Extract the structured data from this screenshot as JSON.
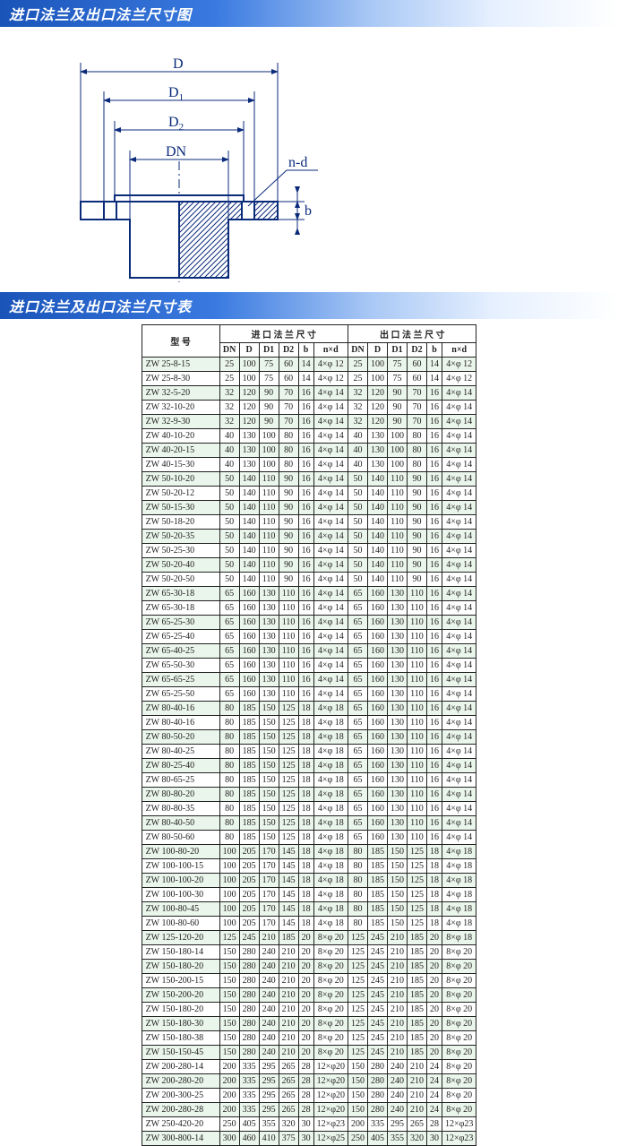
{
  "titles": {
    "diagram": "进口法兰及出口法兰尺寸图",
    "table": "进口法兰及出口法兰尺寸表"
  },
  "diagram": {
    "labels": {
      "D": "D",
      "D1": "D",
      "D1sub": "1",
      "D2": "D",
      "D2sub": "2",
      "DN": "DN",
      "nd": "n-d",
      "b": "b"
    },
    "stroke": "#0a2a7a",
    "hatch": "#0a2a7a"
  },
  "table": {
    "header": {
      "model": "型  号",
      "inlet": "进 口 法 兰 尺 寸",
      "outlet": "出 口 法 兰 尺 寸",
      "cols": [
        "DN",
        "D",
        "D1",
        "D2",
        "b",
        "n×d"
      ]
    },
    "rows": [
      {
        "m": "ZW 25-8-15",
        "in": [
          "25",
          "100",
          "75",
          "60",
          "14",
          "4×φ 12"
        ],
        "out": [
          "25",
          "100",
          "75",
          "60",
          "14",
          "4×φ 12"
        ]
      },
      {
        "m": "ZW 25-8-30",
        "in": [
          "25",
          "100",
          "75",
          "60",
          "14",
          "4×φ 12"
        ],
        "out": [
          "25",
          "100",
          "75",
          "60",
          "14",
          "4×φ 12"
        ]
      },
      {
        "m": "ZW 32-5-20",
        "in": [
          "32",
          "120",
          "90",
          "70",
          "16",
          "4×φ 14"
        ],
        "out": [
          "32",
          "120",
          "90",
          "70",
          "16",
          "4×φ 14"
        ]
      },
      {
        "m": "ZW 32-10-20",
        "in": [
          "32",
          "120",
          "90",
          "70",
          "16",
          "4×φ 14"
        ],
        "out": [
          "32",
          "120",
          "90",
          "70",
          "16",
          "4×φ 14"
        ]
      },
      {
        "m": "ZW 32-9-30",
        "in": [
          "32",
          "120",
          "90",
          "70",
          "16",
          "4×φ 14"
        ],
        "out": [
          "32",
          "120",
          "90",
          "70",
          "16",
          "4×φ 14"
        ]
      },
      {
        "m": "ZW 40-10-20",
        "in": [
          "40",
          "130",
          "100",
          "80",
          "16",
          "4×φ 14"
        ],
        "out": [
          "40",
          "130",
          "100",
          "80",
          "16",
          "4×φ 14"
        ]
      },
      {
        "m": "ZW 40-20-15",
        "in": [
          "40",
          "130",
          "100",
          "80",
          "16",
          "4×φ 14"
        ],
        "out": [
          "40",
          "130",
          "100",
          "80",
          "16",
          "4×φ 14"
        ]
      },
      {
        "m": "ZW 40-15-30",
        "in": [
          "40",
          "130",
          "100",
          "80",
          "16",
          "4×φ 14"
        ],
        "out": [
          "40",
          "130",
          "100",
          "80",
          "16",
          "4×φ 14"
        ]
      },
      {
        "m": "ZW 50-10-20",
        "in": [
          "50",
          "140",
          "110",
          "90",
          "16",
          "4×φ 14"
        ],
        "out": [
          "50",
          "140",
          "110",
          "90",
          "16",
          "4×φ 14"
        ]
      },
      {
        "m": "ZW 50-20-12",
        "in": [
          "50",
          "140",
          "110",
          "90",
          "16",
          "4×φ 14"
        ],
        "out": [
          "50",
          "140",
          "110",
          "90",
          "16",
          "4×φ 14"
        ]
      },
      {
        "m": "ZW 50-15-30",
        "in": [
          "50",
          "140",
          "110",
          "90",
          "16",
          "4×φ 14"
        ],
        "out": [
          "50",
          "140",
          "110",
          "90",
          "16",
          "4×φ 14"
        ]
      },
      {
        "m": "ZW 50-18-20",
        "in": [
          "50",
          "140",
          "110",
          "90",
          "16",
          "4×φ 14"
        ],
        "out": [
          "50",
          "140",
          "110",
          "90",
          "16",
          "4×φ 14"
        ]
      },
      {
        "m": "ZW 50-20-35",
        "in": [
          "50",
          "140",
          "110",
          "90",
          "16",
          "4×φ 14"
        ],
        "out": [
          "50",
          "140",
          "110",
          "90",
          "16",
          "4×φ 14"
        ]
      },
      {
        "m": "ZW 50-25-30",
        "in": [
          "50",
          "140",
          "110",
          "90",
          "16",
          "4×φ 14"
        ],
        "out": [
          "50",
          "140",
          "110",
          "90",
          "16",
          "4×φ 14"
        ]
      },
      {
        "m": "ZW 50-20-40",
        "in": [
          "50",
          "140",
          "110",
          "90",
          "16",
          "4×φ 14"
        ],
        "out": [
          "50",
          "140",
          "110",
          "90",
          "16",
          "4×φ 14"
        ]
      },
      {
        "m": "ZW 50-20-50",
        "in": [
          "50",
          "140",
          "110",
          "90",
          "16",
          "4×φ 14"
        ],
        "out": [
          "50",
          "140",
          "110",
          "90",
          "16",
          "4×φ 14"
        ]
      },
      {
        "m": "ZW 65-30-18",
        "in": [
          "65",
          "160",
          "130",
          "110",
          "16",
          "4×φ 14"
        ],
        "out": [
          "65",
          "160",
          "130",
          "110",
          "16",
          "4×φ 14"
        ]
      },
      {
        "m": "ZW 65-30-18",
        "in": [
          "65",
          "160",
          "130",
          "110",
          "16",
          "4×φ 14"
        ],
        "out": [
          "65",
          "160",
          "130",
          "110",
          "16",
          "4×φ 14"
        ]
      },
      {
        "m": "ZW 65-25-30",
        "in": [
          "65",
          "160",
          "130",
          "110",
          "16",
          "4×φ 14"
        ],
        "out": [
          "65",
          "160",
          "130",
          "110",
          "16",
          "4×φ 14"
        ]
      },
      {
        "m": "ZW 65-25-40",
        "in": [
          "65",
          "160",
          "130",
          "110",
          "16",
          "4×φ 14"
        ],
        "out": [
          "65",
          "160",
          "130",
          "110",
          "16",
          "4×φ 14"
        ]
      },
      {
        "m": "ZW 65-40-25",
        "in": [
          "65",
          "160",
          "130",
          "110",
          "16",
          "4×φ 14"
        ],
        "out": [
          "65",
          "160",
          "130",
          "110",
          "16",
          "4×φ 14"
        ]
      },
      {
        "m": "ZW 65-50-30",
        "in": [
          "65",
          "160",
          "130",
          "110",
          "16",
          "4×φ 14"
        ],
        "out": [
          "65",
          "160",
          "130",
          "110",
          "16",
          "4×φ 14"
        ]
      },
      {
        "m": "ZW 65-65-25",
        "in": [
          "65",
          "160",
          "130",
          "110",
          "16",
          "4×φ 14"
        ],
        "out": [
          "65",
          "160",
          "130",
          "110",
          "16",
          "4×φ 14"
        ]
      },
      {
        "m": "ZW 65-25-50",
        "in": [
          "65",
          "160",
          "130",
          "110",
          "16",
          "4×φ 14"
        ],
        "out": [
          "65",
          "160",
          "130",
          "110",
          "16",
          "4×φ 14"
        ]
      },
      {
        "m": "ZW 80-40-16",
        "in": [
          "80",
          "185",
          "150",
          "125",
          "18",
          "4×φ 18"
        ],
        "out": [
          "65",
          "160",
          "130",
          "110",
          "16",
          "4×φ 14"
        ]
      },
      {
        "m": "ZW 80-40-16",
        "in": [
          "80",
          "185",
          "150",
          "125",
          "18",
          "4×φ 18"
        ],
        "out": [
          "65",
          "160",
          "130",
          "110",
          "16",
          "4×φ 14"
        ]
      },
      {
        "m": "ZW 80-50-20",
        "in": [
          "80",
          "185",
          "150",
          "125",
          "18",
          "4×φ 18"
        ],
        "out": [
          "65",
          "160",
          "130",
          "110",
          "16",
          "4×φ 14"
        ]
      },
      {
        "m": "ZW 80-40-25",
        "in": [
          "80",
          "185",
          "150",
          "125",
          "18",
          "4×φ 18"
        ],
        "out": [
          "65",
          "160",
          "130",
          "110",
          "16",
          "4×φ 14"
        ]
      },
      {
        "m": "ZW 80-25-40",
        "in": [
          "80",
          "185",
          "150",
          "125",
          "18",
          "4×φ 18"
        ],
        "out": [
          "65",
          "160",
          "130",
          "110",
          "16",
          "4×φ 14"
        ]
      },
      {
        "m": "ZW 80-65-25",
        "in": [
          "80",
          "185",
          "150",
          "125",
          "18",
          "4×φ 18"
        ],
        "out": [
          "65",
          "160",
          "130",
          "110",
          "16",
          "4×φ 14"
        ]
      },
      {
        "m": "ZW 80-80-20",
        "in": [
          "80",
          "185",
          "150",
          "125",
          "18",
          "4×φ 18"
        ],
        "out": [
          "65",
          "160",
          "130",
          "110",
          "16",
          "4×φ 14"
        ]
      },
      {
        "m": "ZW 80-80-35",
        "in": [
          "80",
          "185",
          "150",
          "125",
          "18",
          "4×φ 18"
        ],
        "out": [
          "65",
          "160",
          "130",
          "110",
          "16",
          "4×φ 14"
        ]
      },
      {
        "m": "ZW 80-40-50",
        "in": [
          "80",
          "185",
          "150",
          "125",
          "18",
          "4×φ 18"
        ],
        "out": [
          "65",
          "160",
          "130",
          "110",
          "16",
          "4×φ 14"
        ]
      },
      {
        "m": "ZW 80-50-60",
        "in": [
          "80",
          "185",
          "150",
          "125",
          "18",
          "4×φ 18"
        ],
        "out": [
          "65",
          "160",
          "130",
          "110",
          "16",
          "4×φ 14"
        ]
      },
      {
        "m": "ZW 100-80-20",
        "in": [
          "100",
          "205",
          "170",
          "145",
          "18",
          "4×φ 18"
        ],
        "out": [
          "80",
          "185",
          "150",
          "125",
          "18",
          "4×φ 18"
        ]
      },
      {
        "m": "ZW 100-100-15",
        "in": [
          "100",
          "205",
          "170",
          "145",
          "18",
          "4×φ 18"
        ],
        "out": [
          "80",
          "185",
          "150",
          "125",
          "18",
          "4×φ 18"
        ]
      },
      {
        "m": "ZW 100-100-20",
        "in": [
          "100",
          "205",
          "170",
          "145",
          "18",
          "4×φ 18"
        ],
        "out": [
          "80",
          "185",
          "150",
          "125",
          "18",
          "4×φ 18"
        ]
      },
      {
        "m": "ZW 100-100-30",
        "in": [
          "100",
          "205",
          "170",
          "145",
          "18",
          "4×φ 18"
        ],
        "out": [
          "80",
          "185",
          "150",
          "125",
          "18",
          "4×φ 18"
        ]
      },
      {
        "m": "ZW 100-80-45",
        "in": [
          "100",
          "205",
          "170",
          "145",
          "18",
          "4×φ 18"
        ],
        "out": [
          "80",
          "185",
          "150",
          "125",
          "18",
          "4×φ 18"
        ]
      },
      {
        "m": "ZW 100-80-60",
        "in": [
          "100",
          "205",
          "170",
          "145",
          "18",
          "4×φ 18"
        ],
        "out": [
          "80",
          "185",
          "150",
          "125",
          "18",
          "4×φ 18"
        ]
      },
      {
        "m": "ZW 125-120-20",
        "in": [
          "125",
          "245",
          "210",
          "185",
          "20",
          "8×φ 20"
        ],
        "out": [
          "125",
          "245",
          "210",
          "185",
          "20",
          "8×φ 18"
        ]
      },
      {
        "m": "ZW 150-180-14",
        "in": [
          "150",
          "280",
          "240",
          "210",
          "20",
          "8×φ 20"
        ],
        "out": [
          "125",
          "245",
          "210",
          "185",
          "20",
          "8×φ 20"
        ]
      },
      {
        "m": "ZW 150-180-20",
        "in": [
          "150",
          "280",
          "240",
          "210",
          "20",
          "8×φ 20"
        ],
        "out": [
          "125",
          "245",
          "210",
          "185",
          "20",
          "8×φ 20"
        ]
      },
      {
        "m": "ZW 150-200-15",
        "in": [
          "150",
          "280",
          "240",
          "210",
          "20",
          "8×φ 20"
        ],
        "out": [
          "125",
          "245",
          "210",
          "185",
          "20",
          "8×φ 20"
        ]
      },
      {
        "m": "ZW 150-200-20",
        "in": [
          "150",
          "280",
          "240",
          "210",
          "20",
          "8×φ 20"
        ],
        "out": [
          "125",
          "245",
          "210",
          "185",
          "20",
          "8×φ 20"
        ]
      },
      {
        "m": "ZW 150-180-20",
        "in": [
          "150",
          "280",
          "240",
          "210",
          "20",
          "8×φ 20"
        ],
        "out": [
          "125",
          "245",
          "210",
          "185",
          "20",
          "8×φ 20"
        ]
      },
      {
        "m": "ZW 150-180-30",
        "in": [
          "150",
          "280",
          "240",
          "210",
          "20",
          "8×φ 20"
        ],
        "out": [
          "125",
          "245",
          "210",
          "185",
          "20",
          "8×φ 20"
        ]
      },
      {
        "m": "ZW 150-180-38",
        "in": [
          "150",
          "280",
          "240",
          "210",
          "20",
          "8×φ 20"
        ],
        "out": [
          "125",
          "245",
          "210",
          "185",
          "20",
          "8×φ 20"
        ]
      },
      {
        "m": "ZW 150-150-45",
        "in": [
          "150",
          "280",
          "240",
          "210",
          "20",
          "8×φ 20"
        ],
        "out": [
          "125",
          "245",
          "210",
          "185",
          "20",
          "8×φ 20"
        ]
      },
      {
        "m": "ZW 200-280-14",
        "in": [
          "200",
          "335",
          "295",
          "265",
          "28",
          "12×φ20"
        ],
        "out": [
          "150",
          "280",
          "240",
          "210",
          "24",
          "8×φ 20"
        ]
      },
      {
        "m": "ZW 200-280-20",
        "in": [
          "200",
          "335",
          "295",
          "265",
          "28",
          "12×φ20"
        ],
        "out": [
          "150",
          "280",
          "240",
          "210",
          "24",
          "8×φ 20"
        ]
      },
      {
        "m": "ZW 200-300-25",
        "in": [
          "200",
          "335",
          "295",
          "265",
          "28",
          "12×φ20"
        ],
        "out": [
          "150",
          "280",
          "240",
          "210",
          "24",
          "8×φ 20"
        ]
      },
      {
        "m": "ZW 200-280-28",
        "in": [
          "200",
          "335",
          "295",
          "265",
          "28",
          "12×φ20"
        ],
        "out": [
          "150",
          "280",
          "240",
          "210",
          "24",
          "8×φ 20"
        ]
      },
      {
        "m": "ZW 250-420-20",
        "in": [
          "250",
          "405",
          "355",
          "320",
          "30",
          "12×φ23"
        ],
        "out": [
          "200",
          "335",
          "295",
          "265",
          "28",
          "12×φ23"
        ]
      },
      {
        "m": "ZW 300-800-14",
        "in": [
          "300",
          "460",
          "410",
          "375",
          "30",
          "12×φ25"
        ],
        "out": [
          "250",
          "405",
          "355",
          "320",
          "30",
          "12×φ23"
        ]
      }
    ]
  }
}
